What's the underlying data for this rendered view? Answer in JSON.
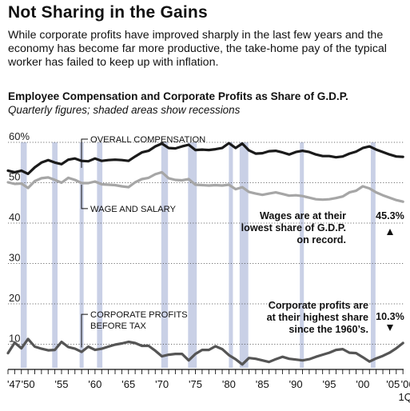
{
  "headline": "Not Sharing in the Gains",
  "deck": "While corporate profits have improved sharply in the last few years and the economy has become far more productive, the take-home pay of the typical worker has failed to keep up with inflation.",
  "chart_data": {
    "type": "line",
    "title": "Employee Compensation and Corporate Profits as Share of G.D.P.",
    "subtitle": "Quarterly figures; shaded areas show recessions",
    "xlabel": "",
    "ylabel": "",
    "xlim": [
      1947,
      2006.1
    ],
    "ylim": [
      0,
      60
    ],
    "y_ticks": [
      10,
      20,
      30,
      40,
      50,
      60
    ],
    "y_tick_labels": [
      "10",
      "20",
      "30",
      "40",
      "50",
      "60%"
    ],
    "x_tick_labels": [
      {
        "x": 1947,
        "label": "'47"
      },
      {
        "x": 1950,
        "label": "'50"
      },
      {
        "x": 1955,
        "label": "'55"
      },
      {
        "x": 1960,
        "label": "'60"
      },
      {
        "x": 1965,
        "label": "'65"
      },
      {
        "x": 1970,
        "label": "'70"
      },
      {
        "x": 1975,
        "label": "'75"
      },
      {
        "x": 1980,
        "label": "'80"
      },
      {
        "x": 1985,
        "label": "'85"
      },
      {
        "x": 1990,
        "label": "'90"
      },
      {
        "x": 1995,
        "label": "'95"
      },
      {
        "x": 2000,
        "label": "'00"
      },
      {
        "x": 2005,
        "label": "'05"
      },
      {
        "x": 2006,
        "label": "'06"
      }
    ],
    "x_end_note": "1Q",
    "grid": "horizontal dotted",
    "recessions": [
      [
        1948.9,
        1949.8
      ],
      [
        1953.6,
        1954.4
      ],
      [
        1957.7,
        1958.3
      ],
      [
        1960.3,
        1961.1
      ],
      [
        1969.9,
        1970.9
      ],
      [
        1973.9,
        1975.2
      ],
      [
        1980.0,
        1980.6
      ],
      [
        1981.6,
        1982.9
      ],
      [
        1990.6,
        1991.2
      ],
      [
        2001.2,
        2001.9
      ]
    ],
    "series": [
      {
        "name": "OVERALL COMPENSATION",
        "color": "#1a1a1a",
        "x": [
          1947,
          1948,
          1949,
          1950,
          1951,
          1952,
          1953,
          1954,
          1955,
          1956,
          1957,
          1958,
          1959,
          1960,
          1961,
          1962,
          1963,
          1964,
          1965,
          1966,
          1967,
          1968,
          1969,
          1970,
          1971,
          1972,
          1973,
          1974,
          1975,
          1976,
          1977,
          1978,
          1979,
          1980,
          1981,
          1982,
          1983,
          1984,
          1985,
          1986,
          1987,
          1988,
          1989,
          1990,
          1991,
          1992,
          1993,
          1994,
          1995,
          1996,
          1997,
          1998,
          1999,
          2000,
          2001,
          2002,
          2003,
          2004,
          2005,
          2006
        ],
        "values": [
          53.0,
          52.6,
          53.0,
          52.2,
          53.8,
          55.0,
          55.6,
          55.0,
          54.6,
          55.7,
          56.0,
          55.4,
          55.3,
          56.0,
          55.4,
          55.6,
          55.7,
          55.6,
          55.4,
          56.5,
          57.5,
          57.9,
          59.0,
          59.7,
          58.6,
          58.5,
          59.0,
          59.4,
          58.1,
          58.2,
          58.1,
          58.3,
          58.6,
          59.8,
          58.6,
          59.7,
          58.0,
          57.2,
          57.3,
          57.8,
          57.9,
          57.5,
          57.0,
          57.6,
          57.9,
          57.6,
          57.0,
          56.6,
          56.6,
          56.3,
          56.5,
          57.2,
          57.7,
          58.6,
          59.0,
          58.2,
          57.6,
          57.0,
          56.5,
          56.4
        ]
      },
      {
        "name": "WAGE AND SALARY",
        "color": "#a6a6a6",
        "x": [
          1947,
          1948,
          1949,
          1950,
          1951,
          1952,
          1953,
          1954,
          1955,
          1956,
          1957,
          1958,
          1959,
          1960,
          1961,
          1962,
          1963,
          1964,
          1965,
          1966,
          1967,
          1968,
          1969,
          1970,
          1971,
          1972,
          1973,
          1974,
          1975,
          1976,
          1977,
          1978,
          1979,
          1980,
          1981,
          1982,
          1983,
          1984,
          1985,
          1986,
          1987,
          1988,
          1989,
          1990,
          1991,
          1992,
          1993,
          1994,
          1995,
          1996,
          1997,
          1998,
          1999,
          2000,
          2001,
          2002,
          2003,
          2004,
          2005,
          2006
        ],
        "values": [
          50.1,
          49.7,
          49.8,
          48.7,
          50.4,
          51.1,
          51.3,
          50.7,
          50.0,
          51.2,
          50.7,
          49.9,
          49.9,
          50.3,
          49.6,
          49.5,
          49.4,
          49.1,
          48.9,
          50.1,
          50.9,
          51.2,
          52.1,
          52.6,
          51.1,
          50.7,
          50.6,
          50.9,
          49.5,
          49.4,
          49.3,
          49.4,
          49.3,
          49.5,
          48.4,
          48.9,
          47.7,
          47.3,
          47.0,
          47.3,
          47.6,
          47.2,
          46.8,
          46.9,
          46.7,
          46.3,
          45.9,
          45.8,
          45.9,
          46.2,
          46.6,
          47.6,
          48.0,
          49.1,
          48.6,
          47.6,
          46.9,
          46.3,
          45.7,
          45.3
        ]
      },
      {
        "name": "CORPORATE PROFITS BEFORE TAX",
        "color": "#555555",
        "x": [
          1947,
          1948,
          1949,
          1950,
          1951,
          1952,
          1953,
          1954,
          1955,
          1956,
          1957,
          1958,
          1959,
          1960,
          1961,
          1962,
          1963,
          1964,
          1965,
          1966,
          1967,
          1968,
          1969,
          1970,
          1971,
          1972,
          1973,
          1974,
          1975,
          1976,
          1977,
          1978,
          1979,
          1980,
          1981,
          1982,
          1983,
          1984,
          1985,
          1986,
          1987,
          1988,
          1989,
          1990,
          1991,
          1992,
          1993,
          1994,
          1995,
          1996,
          1997,
          1998,
          1999,
          2000,
          2001,
          2002,
          2003,
          2004,
          2005,
          2006
        ],
        "values": [
          7.8,
          10.4,
          9.0,
          11.3,
          9.4,
          8.9,
          8.5,
          8.6,
          10.6,
          9.3,
          8.9,
          8.1,
          9.4,
          8.6,
          8.9,
          9.4,
          9.9,
          10.2,
          10.6,
          10.3,
          9.6,
          9.6,
          8.4,
          7.0,
          7.4,
          7.6,
          7.6,
          6.0,
          7.6,
          8.6,
          8.6,
          9.5,
          8.8,
          7.3,
          6.3,
          5.0,
          6.6,
          6.4,
          6.0,
          5.6,
          6.3,
          6.9,
          6.4,
          6.2,
          6.0,
          6.3,
          6.9,
          7.4,
          7.9,
          8.6,
          8.8,
          7.9,
          7.8,
          6.8,
          5.7,
          6.5,
          7.1,
          7.9,
          9.0,
          10.3
        ]
      }
    ],
    "series_labels": {
      "overall": "OVERALL COMPENSATION",
      "wage": "WAGE AND SALARY",
      "profits_line1": "CORPORATE PROFITS",
      "profits_line2": "BEFORE TAX"
    },
    "annotations": {
      "wages_note": [
        "Wages are at their",
        "lowest share of G.D.P.",
        "on record."
      ],
      "wages_value": "45.3%",
      "profits_note": [
        "Corporate profits are",
        "at their highest share",
        "since the 1960’s."
      ],
      "profits_value": "10.3%"
    }
  }
}
